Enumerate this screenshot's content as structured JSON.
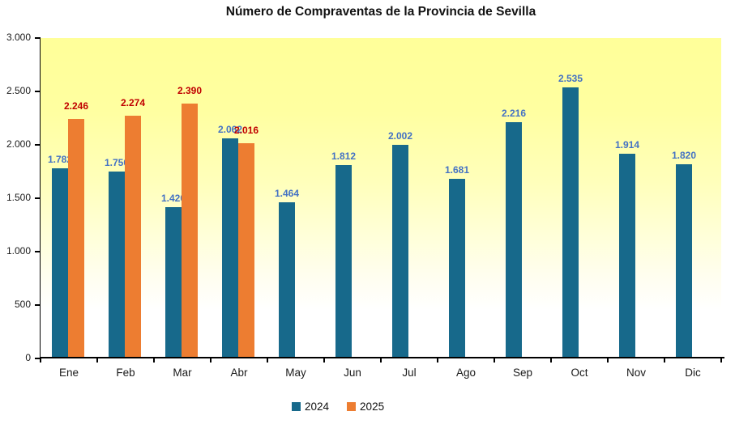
{
  "chart_data": {
    "type": "bar",
    "title": "Número de Compraventas de la Provincia de Sevilla",
    "categories": [
      "Ene",
      "Feb",
      "Mar",
      "Abr",
      "May",
      "Jun",
      "Jul",
      "Ago",
      "Sep",
      "Oct",
      "Nov",
      "Dic"
    ],
    "series": [
      {
        "name": "2024",
        "bar_color": "#17698B",
        "label_color": "#4472C4",
        "values": [
          1782,
          1750,
          1420,
          2062,
          1464,
          1812,
          2002,
          1681,
          2216,
          2535,
          1914,
          1820
        ]
      },
      {
        "name": "2025",
        "bar_color": "#ED7D31",
        "label_color": "#C00000",
        "values": [
          2246,
          2274,
          2390,
          2016,
          null,
          null,
          null,
          null,
          null,
          null,
          null,
          null
        ]
      }
    ],
    "xlabel": "",
    "ylabel": "",
    "ylim": [
      0,
      3000
    ],
    "ytick_values": [
      0,
      500,
      1000,
      1500,
      2000,
      2500,
      3000
    ],
    "ytick_labels": [
      "0",
      "500",
      "1.000",
      "1.500",
      "2.000",
      "2.500",
      "3.000"
    ],
    "grid": false,
    "legend_position": "bottom",
    "data_labels_thousands_separator": ".",
    "plot_background": {
      "top": "#FFFF99",
      "bottom": "#FFFFFF"
    },
    "axis_color": "#000000"
  }
}
